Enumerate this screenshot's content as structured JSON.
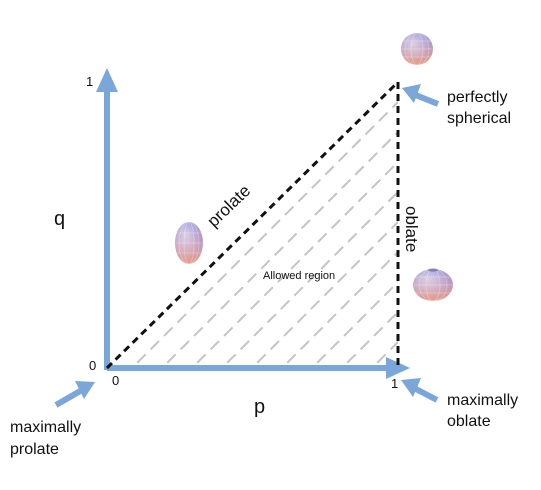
{
  "axes": {
    "x_label": "p",
    "y_label": "q",
    "x_origin_tick": "0",
    "y_origin_tick": "0",
    "x_max_tick": "1",
    "y_max_tick": "1"
  },
  "edges": {
    "diagonal": "prolate",
    "vertical": "oblate"
  },
  "region_label": "Allowed region",
  "callouts": {
    "spherical_line1": "perfectly",
    "spherical_line2": "spherical",
    "max_oblate_line1": "maximally",
    "max_oblate_line2": "oblate",
    "max_prolate_line1": "maximally",
    "max_prolate_line2": "prolate"
  },
  "colors": {
    "axis_arrow": "#7aa6d9",
    "axis_arrow_dark": "#5f8ec8",
    "boundary": "#111111",
    "hatch": "#c4c4c4",
    "ellipsoid_top": "#8f8fd6",
    "ellipsoid_bottom": "#e6a08a"
  },
  "icons": [
    "prolate-ellipsoid-icon",
    "spherical-ellipsoid-icon",
    "oblate-ellipsoid-icon"
  ]
}
